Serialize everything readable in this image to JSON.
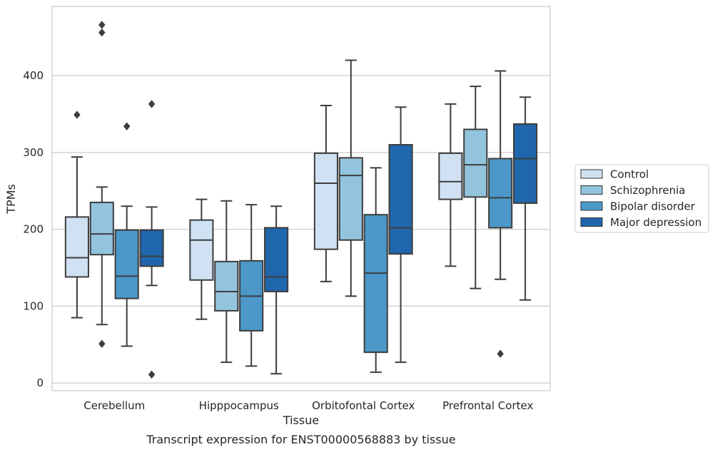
{
  "chart_data": {
    "type": "box",
    "xlabel": "Tissue",
    "ylabel": "TPMs",
    "caption": "Transcript expression for ENST00000568883 by tissue",
    "ylim": [
      -10,
      490
    ],
    "yticks": [
      0,
      100,
      200,
      300,
      400
    ],
    "grid": "horizontal",
    "legend_position": "right",
    "categories": [
      "Cerebellum",
      "Hipppocampus",
      "Orbitofontal Cortex",
      "Prefrontal Cortex"
    ],
    "series": [
      {
        "name": "Control",
        "color": "#cfe1f2",
        "boxes": [
          {
            "whislo": 85,
            "q1": 138,
            "med": 163,
            "q3": 216,
            "whishi": 294,
            "fliers": [
              349
            ]
          },
          {
            "whislo": 83,
            "q1": 134,
            "med": 186,
            "q3": 212,
            "whishi": 239,
            "fliers": []
          },
          {
            "whislo": 132,
            "q1": 174,
            "med": 260,
            "q3": 299,
            "whishi": 361,
            "fliers": []
          },
          {
            "whislo": 152,
            "q1": 239,
            "med": 262,
            "q3": 299,
            "whishi": 363,
            "fliers": []
          }
        ]
      },
      {
        "name": "Schizophrenia",
        "color": "#93c4de",
        "boxes": [
          {
            "whislo": 76,
            "q1": 167,
            "med": 194,
            "q3": 235,
            "whishi": 255,
            "fliers": [
              51,
              456,
              466
            ]
          },
          {
            "whislo": 27,
            "q1": 94,
            "med": 119,
            "q3": 158,
            "whishi": 237,
            "fliers": []
          },
          {
            "whislo": 113,
            "q1": 186,
            "med": 270,
            "q3": 293,
            "whishi": 420,
            "fliers": []
          },
          {
            "whislo": 123,
            "q1": 242,
            "med": 284,
            "q3": 330,
            "whishi": 386,
            "fliers": []
          }
        ]
      },
      {
        "name": "Bipolar disorder",
        "color": "#4b98c9",
        "boxes": [
          {
            "whislo": 48,
            "q1": 110,
            "med": 139,
            "q3": 199,
            "whishi": 230,
            "fliers": [
              334
            ]
          },
          {
            "whislo": 22,
            "q1": 68,
            "med": 113,
            "q3": 159,
            "whishi": 232,
            "fliers": []
          },
          {
            "whislo": 14,
            "q1": 40,
            "med": 143,
            "q3": 219,
            "whishi": 280,
            "fliers": []
          },
          {
            "whislo": 135,
            "q1": 202,
            "med": 241,
            "q3": 292,
            "whishi": 406,
            "fliers": [
              38
            ]
          }
        ]
      },
      {
        "name": "Major depression",
        "color": "#2066ac",
        "boxes": [
          {
            "whislo": 127,
            "q1": 152,
            "med": 165,
            "q3": 199,
            "whishi": 229,
            "fliers": [
              11,
              363
            ]
          },
          {
            "whislo": 12,
            "q1": 119,
            "med": 138,
            "q3": 202,
            "whishi": 230,
            "fliers": []
          },
          {
            "whislo": 27,
            "q1": 168,
            "med": 202,
            "q3": 310,
            "whishi": 359,
            "fliers": []
          },
          {
            "whislo": 108,
            "q1": 234,
            "med": 292,
            "q3": 337,
            "whishi": 372,
            "fliers": []
          }
        ]
      }
    ]
  }
}
